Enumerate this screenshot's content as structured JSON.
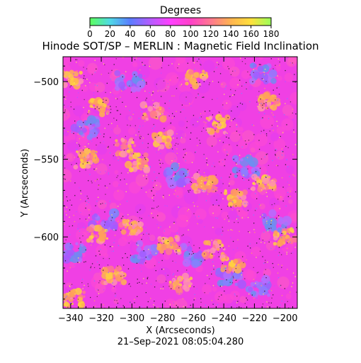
{
  "chart_data": {
    "type": "heatmap",
    "title": "Hinode SOT/SP – MERLIN : Magnetic Field Inclination",
    "colorbar": {
      "label": "Degrees",
      "range": [
        0,
        180
      ],
      "ticks": [
        "0",
        "20",
        "40",
        "60",
        "80",
        "100",
        "120",
        "140",
        "160",
        "180"
      ],
      "palette": [
        "#5cff5c",
        "#4fd9e6",
        "#5a7cff",
        "#b45cff",
        "#ff40ff",
        "#ff40c8",
        "#ff7890",
        "#ffb450",
        "#ffe03c",
        "#9aff5a"
      ]
    },
    "xlabel": "X (Arcseconds)",
    "ylabel": "Y (Arcseconds)",
    "xlim": [
      -345,
      -192
    ],
    "ylim": [
      -646,
      -484
    ],
    "xticks": [
      -340,
      -320,
      -300,
      -280,
      -260,
      -240,
      -220,
      -200
    ],
    "xtick_labels": [
      "−340",
      "−320",
      "−300",
      "−280",
      "−260",
      "−240",
      "−220",
      "−200"
    ],
    "yticks": [
      -500,
      -550,
      -600
    ],
    "ytick_labels": [
      "−500",
      "−550",
      "−600"
    ],
    "dominant_value": 95,
    "features": {
      "hot_spots": [
        {
          "x": -340,
          "y": -498
        },
        {
          "x": -322,
          "y": -517
        },
        {
          "x": -305,
          "y": -542
        },
        {
          "x": -296,
          "y": -552
        },
        {
          "x": -280,
          "y": -538
        },
        {
          "x": -258,
          "y": -498
        },
        {
          "x": -244,
          "y": -528
        },
        {
          "x": -232,
          "y": -575
        },
        {
          "x": -214,
          "y": -566
        },
        {
          "x": -210,
          "y": -512
        },
        {
          "x": -322,
          "y": -598
        },
        {
          "x": -300,
          "y": -594
        },
        {
          "x": -276,
          "y": -605
        },
        {
          "x": -246,
          "y": -608
        },
        {
          "x": -312,
          "y": -625
        },
        {
          "x": -268,
          "y": -630
        },
        {
          "x": -234,
          "y": -618
        },
        {
          "x": -200,
          "y": -600
        },
        {
          "x": -338,
          "y": -640
        },
        {
          "x": -286,
          "y": -520
        },
        {
          "x": -330,
          "y": -550
        },
        {
          "x": -252,
          "y": -566
        }
      ],
      "cool_spots": [
        {
          "x": -330,
          "y": -530
        },
        {
          "x": -318,
          "y": -590
        },
        {
          "x": -292,
          "y": -610
        },
        {
          "x": -262,
          "y": -612
        },
        {
          "x": -236,
          "y": -625
        },
        {
          "x": -218,
          "y": -632
        },
        {
          "x": -206,
          "y": -590
        },
        {
          "x": -226,
          "y": -555
        },
        {
          "x": -270,
          "y": -560
        },
        {
          "x": -302,
          "y": -500
        },
        {
          "x": -214,
          "y": -495
        },
        {
          "x": -340,
          "y": -610
        }
      ]
    },
    "timestamp": "21–Sep–2021 08:05:04.280"
  }
}
